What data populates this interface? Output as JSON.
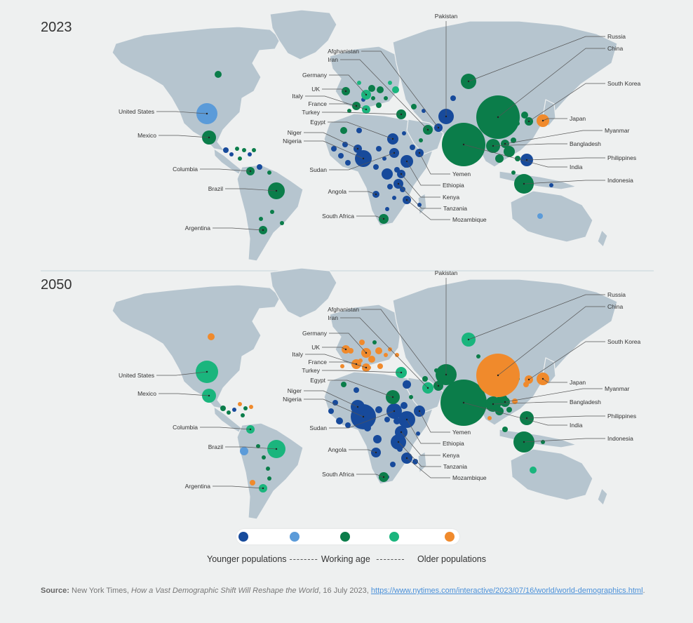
{
  "colors": {
    "younger": "#174a9b",
    "younger_light": "#5b9bd9",
    "working": "#0b7d4a",
    "working_light": "#1ab57d",
    "older": "#f08a2c"
  },
  "maps": [
    {
      "year": "2023",
      "labels": [
        "Pakistan",
        "Russia",
        "China",
        "Afghanistan",
        "Iran",
        "Germany",
        "UK",
        "Italy",
        "France",
        "Turkey",
        "Egypt",
        "Niger",
        "Nigeria",
        "Sudan",
        "Angola",
        "South Africa",
        "United States",
        "Mexico",
        "Columbia",
        "Brazil",
        "Argentina",
        "South Korea",
        "Japan",
        "Myanmar",
        "Bangladesh",
        "Philippines",
        "India",
        "Indonesia",
        "Yemen",
        "Ethiopia",
        "Kenya",
        "Tanzania",
        "Mozambique"
      ]
    },
    {
      "year": "2050",
      "labels": [
        "Pakistan",
        "Russia",
        "China",
        "Afghanistan",
        "Iran",
        "Germany",
        "UK",
        "Italy",
        "France",
        "Turkey",
        "Egypt",
        "Niger",
        "Nigeria",
        "Sudan",
        "Angola",
        "South Africa",
        "United States",
        "Mexico",
        "Columbia",
        "Brazil",
        "Argentina",
        "South Korea",
        "Japan",
        "Myanmar",
        "Bangladesh",
        "Philippines",
        "India",
        "Indonesia",
        "Yemen",
        "Ethiopia",
        "Kenya",
        "Tanzania",
        "Mozambique"
      ]
    }
  ],
  "legend": {
    "younger": "Younger populations",
    "working": "Working age",
    "older": "Older populations"
  },
  "source": {
    "label": "Source:",
    "text_before": "New York Times, ",
    "title": "How a Vast Demographic Shift Will Reshape the World",
    "text_after": ", 16 July 2023, ",
    "url": "https://www.nytimes.com/interactive/2023/07/16/world/world-demographics.html",
    "end": "."
  }
}
